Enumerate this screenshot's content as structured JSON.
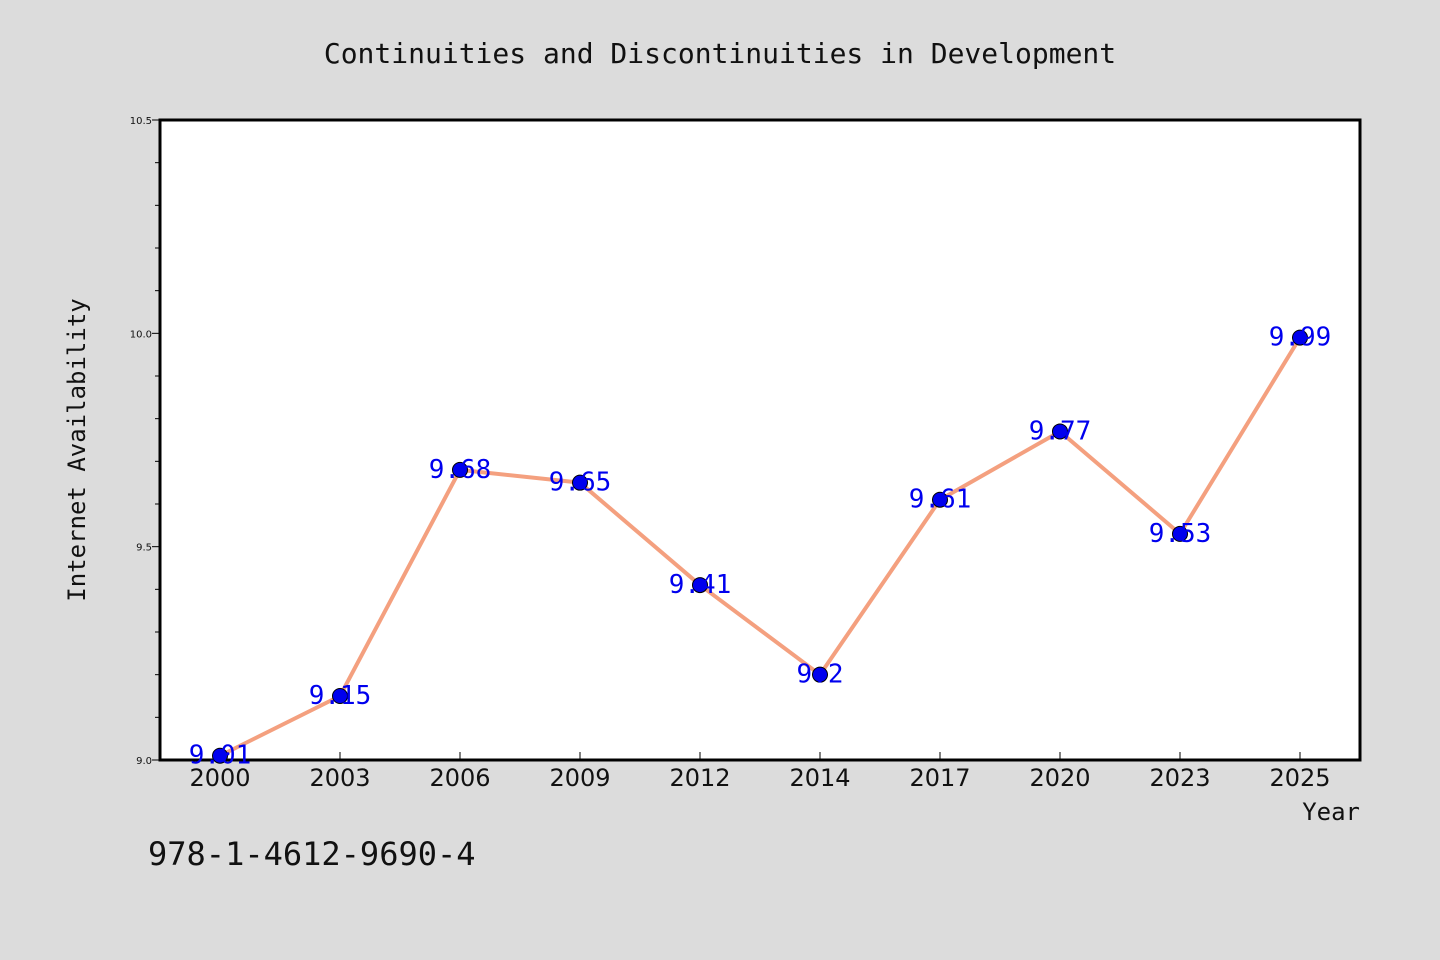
{
  "chart_data": {
    "type": "line",
    "title": "Continuities and Discontinuities in Development",
    "xlabel": "Year",
    "ylabel": "Internet Availability",
    "categories": [
      "2000",
      "2003",
      "2006",
      "2009",
      "2012",
      "2014",
      "2017",
      "2020",
      "2023",
      "2025"
    ],
    "series": [
      {
        "values": [
          9.01,
          9.15,
          9.68,
          9.65,
          9.41,
          9.2,
          9.61,
          9.77,
          9.53,
          9.99
        ],
        "data_labels": [
          "9.01",
          "9.15",
          "9.68",
          "9.65",
          "9.41",
          "9.2",
          "9.61",
          "9.77",
          "9.53",
          "9.99"
        ],
        "line_color": "#f4a07f",
        "marker_color": "#0000ee",
        "label_color": "#0000ee"
      }
    ],
    "ylim": [
      9.0,
      10.5
    ],
    "yticks": [
      9.0,
      9.5,
      10.0,
      10.5
    ],
    "ytick_labels": [
      "9.0",
      "9.5",
      "10.0",
      "10.5"
    ],
    "minor_yticks": [
      9.1,
      9.2,
      9.3,
      9.4,
      9.6,
      9.7,
      9.8,
      9.9,
      10.1,
      10.2,
      10.3,
      10.4
    ],
    "grid": false,
    "legend": "none"
  },
  "footer_text": "978-1-4612-9690-4",
  "colors": {
    "background": "#dcdcdc",
    "plot_background": "#ffffff"
  }
}
